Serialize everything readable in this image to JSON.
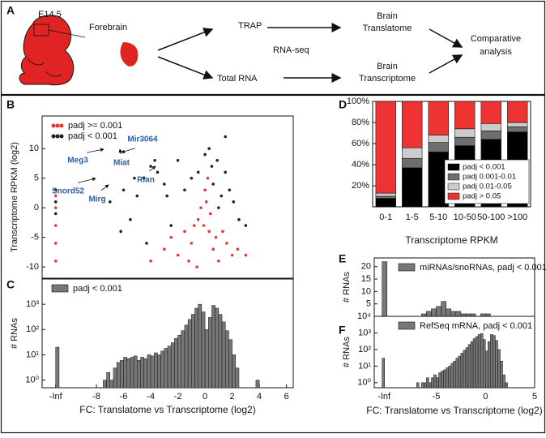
{
  "panel_a": {
    "label": "A",
    "embryo_stage": "E14.5",
    "tissue": "Forebrain",
    "method_1": "TRAP",
    "method_2": "Total RNA",
    "sequencing": "RNA-seq",
    "output_1": [
      "Brain",
      "Translatome"
    ],
    "output_2": [
      "Brain",
      "Transcriptome"
    ],
    "result": [
      "Comparative",
      "analysis"
    ]
  },
  "chart_data": [
    {
      "type": "scatter",
      "panel": "B",
      "ylabel": "Transcriptome RPKM (log2)",
      "xlim": [
        -12,
        6.5
      ],
      "ylim": [
        -11.9,
        15.5
      ],
      "yticks": [
        -10,
        -5,
        0,
        5,
        10
      ],
      "legend": "upper left",
      "annotations": [
        "Mir3064",
        "Meg3",
        "Miat",
        "Rian",
        "Snord52",
        "Mirg"
      ],
      "series": [
        {
          "name": "padj >= 0.001",
          "color": "#ee3333",
          "x": [
            -11,
            -11,
            -11,
            -11,
            -11,
            -3,
            -2.5,
            -2,
            -1.5,
            -1.2,
            -1,
            -0.8,
            -0.5,
            -0.3,
            0,
            0.2,
            0.4,
            0.6,
            0.8,
            1,
            1.3,
            1.6,
            2,
            2.4,
            3,
            -4,
            -0.1,
            0.1,
            0.3,
            -0.6
          ],
          "values": [
            -9,
            -6,
            -3,
            0,
            2,
            -7,
            -5,
            -8,
            -4,
            -9,
            -6,
            -3,
            -2,
            0,
            3,
            5,
            -1,
            -7,
            -5,
            -9,
            -4,
            -6,
            -8,
            -7,
            -8,
            -9,
            -3,
            1,
            -4,
            -10
          ]
        },
        {
          "name": "padj < 0.001",
          "color": "#222222",
          "x": [
            -11,
            -11,
            -11,
            -7,
            -6,
            -5.5,
            -5,
            -4.5,
            -4,
            -3.5,
            -3,
            -2.5,
            -2,
            -1.5,
            -1,
            -0.5,
            0,
            0.3,
            0.6,
            0.9,
            1.2,
            1.5,
            1.8,
            2.1,
            2.5,
            3,
            1,
            0.5,
            1.5,
            -6.2,
            -3.7,
            -5.2,
            -4.3,
            -2.8
          ],
          "values": [
            3,
            1,
            -1,
            1,
            3,
            -2,
            2,
            5,
            7,
            6,
            4,
            -3,
            8,
            3,
            5,
            6,
            9,
            10,
            4,
            8,
            2,
            6,
            3,
            1,
            -2,
            -3,
            0,
            7,
            12,
            -4,
            8,
            5,
            -6,
            2
          ]
        }
      ]
    },
    {
      "type": "histogram",
      "panel": "C",
      "name": "padj < 0.001",
      "color": "#777777",
      "xlabel": "FC: Translatome vs Transcriptome (log2)",
      "ylabel": "# RNAs",
      "log_y": true,
      "xlim": [
        -12,
        6.5
      ],
      "ylim": [
        0.5,
        10000
      ],
      "xticks": [
        {
          "value": -11,
          "label": "-Inf"
        },
        -8,
        -6,
        -4,
        -2,
        0,
        2,
        4,
        6
      ],
      "yticks": [
        {
          "value": 1,
          "label": "10⁰"
        },
        {
          "value": 10,
          "label": "10¹"
        },
        {
          "value": 100,
          "label": "10²"
        },
        {
          "value": 1000,
          "label": "10³"
        }
      ],
      "bins": [
        -11,
        -10.75,
        -10.5,
        -10.25,
        -10,
        -9.75,
        -9.5,
        -9.25,
        -9,
        -8.75,
        -8.5,
        -8.25,
        -8,
        -7.75,
        -7.5,
        -7.25,
        -7,
        -6.75,
        -6.5,
        -6.25,
        -6,
        -5.75,
        -5.5,
        -5.25,
        -5,
        -4.75,
        -4.5,
        -4.25,
        -4,
        -3.75,
        -3.5,
        -3.25,
        -3,
        -2.75,
        -2.5,
        -2.25,
        -2,
        -1.75,
        -1.5,
        -1.25,
        -1,
        -0.75,
        -0.5,
        -0.25,
        0,
        0.25,
        0.5,
        0.75,
        1,
        1.25,
        1.5,
        1.75,
        2,
        2.25,
        2.5,
        2.75,
        3,
        3.25,
        3.5,
        3.75,
        4
      ],
      "counts": [
        20,
        0,
        0,
        0,
        0,
        0,
        0,
        0,
        0,
        0,
        0,
        0,
        0,
        0,
        1,
        2,
        1,
        3,
        5,
        6,
        8,
        7,
        8,
        9,
        6,
        8,
        7,
        10,
        9,
        12,
        10,
        14,
        18,
        22,
        30,
        45,
        60,
        90,
        150,
        250,
        400,
        700,
        1000,
        500,
        100,
        300,
        900,
        700,
        400,
        200,
        90,
        40,
        10,
        3,
        0,
        0,
        0,
        0,
        0,
        1
      ]
    },
    {
      "type": "stacked_bar",
      "panel": "D",
      "xlabel": "Transcriptome RPKM",
      "legend": "lower right",
      "categories": [
        "0-1",
        "1-5",
        "5-10",
        "10-50",
        "50-100",
        ">100"
      ],
      "ylim": [
        0,
        100
      ],
      "yticks": [
        {
          "value": 20,
          "label": "20%"
        },
        {
          "value": 40,
          "label": "40%"
        },
        {
          "value": 60,
          "label": "60%"
        },
        {
          "value": 80,
          "label": "80%"
        },
        {
          "value": 100,
          "label": "100%"
        }
      ],
      "series": [
        {
          "name": "padj < 0.001",
          "color": "#000000",
          "values": [
            8,
            37,
            52,
            58,
            64,
            71
          ]
        },
        {
          "name": "padj 0.001-0.01",
          "color": "#6e6e6e",
          "values": [
            2,
            9,
            9,
            8,
            8,
            5
          ]
        },
        {
          "name": "padj 0.01-0.05",
          "color": "#cccccc",
          "values": [
            3,
            10,
            7,
            8,
            7,
            4
          ]
        },
        {
          "name": "padj > 0.05",
          "color": "#ee3333",
          "values": [
            87,
            44,
            32,
            26,
            21,
            20
          ]
        }
      ]
    },
    {
      "type": "histogram",
      "panel": "E",
      "name": "miRNAs/snoRNAs, padj < 0.001",
      "color": "#777777",
      "ylabel": "# RNAs",
      "log_y": false,
      "xlim": [
        -11.3,
        5
      ],
      "ylim": [
        0,
        23.5
      ],
      "yticks": [
        5,
        10,
        15,
        20
      ],
      "bins": [
        -10.5,
        -10,
        -9.5,
        -9,
        -8.5,
        -8,
        -7.5,
        -7,
        -6.5,
        -6,
        -5.5,
        -5,
        -4.5,
        -4,
        -3.5,
        -3,
        -2.5,
        -2,
        -1.5,
        -1,
        -0.5,
        0,
        0.5
      ],
      "counts": [
        22,
        0,
        0,
        0,
        0,
        0,
        0,
        0,
        1,
        2,
        3,
        4,
        6,
        3,
        2,
        2,
        1,
        1,
        1,
        0,
        1,
        1
      ]
    },
    {
      "type": "histogram",
      "panel": "F",
      "name": "RefSeq mRNA, padj < 0.001",
      "color": "#777777",
      "xlabel": "FC: Translatome vs Transcriptome (log2)",
      "ylabel": "# RNAs",
      "log_y": true,
      "xlim": [
        -11.3,
        5
      ],
      "ylim": [
        0.5,
        10000
      ],
      "xticks": [
        {
          "value": -10.3,
          "label": "-Inf"
        },
        -5,
        0,
        5
      ],
      "yticks": [
        {
          "value": 1,
          "label": "10⁰"
        },
        {
          "value": 10,
          "label": "10¹"
        },
        {
          "value": 100,
          "label": "10²"
        },
        {
          "value": 1000,
          "label": "10³"
        },
        {
          "value": 10000,
          "label": "10⁴"
        }
      ],
      "bins": [
        -10.5,
        -10.25,
        -10,
        -9.75,
        -9.5,
        -9.25,
        -9,
        -8.75,
        -8.5,
        -8.25,
        -8,
        -7.75,
        -7.5,
        -7.25,
        -7,
        -6.75,
        -6.5,
        -6.25,
        -6,
        -5.75,
        -5.5,
        -5.25,
        -5,
        -4.75,
        -4.5,
        -4.25,
        -4,
        -3.75,
        -3.5,
        -3.25,
        -3,
        -2.75,
        -2.5,
        -2.25,
        -2,
        -1.75,
        -1.5,
        -1.25,
        -1,
        -0.75,
        -0.5,
        -0.25,
        0,
        0.25,
        0.5,
        0.75,
        1,
        1.25,
        1.5,
        1.75,
        2,
        2.25
      ],
      "counts": [
        30,
        0,
        0,
        0,
        0,
        0,
        0,
        0,
        0,
        0,
        0,
        0,
        0,
        0,
        1,
        0,
        1,
        1,
        2,
        1,
        2,
        3,
        2,
        4,
        5,
        6,
        8,
        10,
        15,
        20,
        30,
        40,
        60,
        90,
        130,
        200,
        300,
        450,
        600,
        800,
        900,
        400,
        80,
        300,
        800,
        700,
        350,
        100,
        20,
        3,
        1
      ]
    }
  ]
}
